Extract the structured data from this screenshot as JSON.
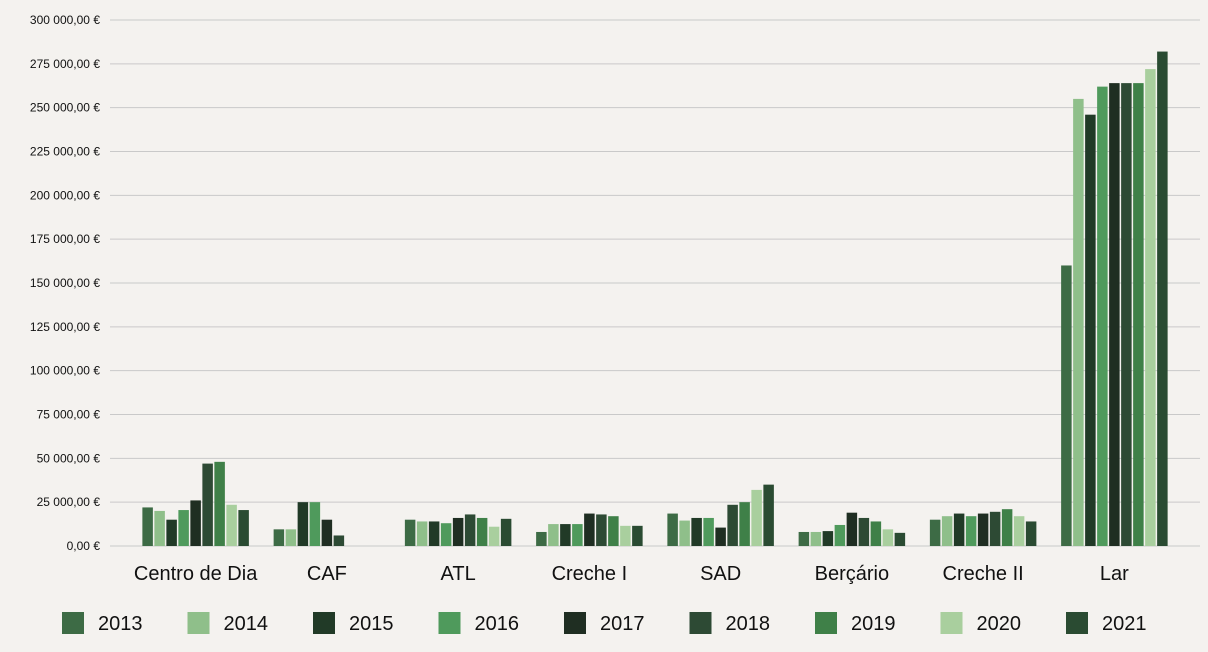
{
  "chart_data": {
    "type": "bar",
    "title": "",
    "xlabel": "",
    "ylabel": "",
    "ylim": [
      0,
      300000
    ],
    "yticks": [
      0,
      25000,
      50000,
      75000,
      100000,
      125000,
      150000,
      175000,
      200000,
      225000,
      250000,
      275000,
      300000
    ],
    "ytick_labels": [
      "0,00 €",
      "25 000,00 €",
      "50 000,00 €",
      "75 000,00 €",
      "100 000,00 €",
      "125 000,00 €",
      "150 000,00 €",
      "175 000,00 €",
      "200 000,00 €",
      "225 000,00 €",
      "250 000,00 €",
      "275 000,00 €",
      "300 000,00 €"
    ],
    "grid": true,
    "legend_position": "bottom",
    "categories": [
      "Centro de Dia",
      "CAF",
      "ATL",
      "Creche I",
      "SAD",
      "Berçário",
      "Creche II",
      "Lar"
    ],
    "series": [
      {
        "name": "2013",
        "color": "#3d6b45",
        "values": [
          22000,
          9500,
          15000,
          8000,
          18500,
          8000,
          15000,
          160000
        ]
      },
      {
        "name": "2014",
        "color": "#8fbf8a",
        "values": [
          20000,
          9500,
          14000,
          12500,
          14500,
          8000,
          17000,
          255000
        ]
      },
      {
        "name": "2015",
        "color": "#213a27",
        "values": [
          15000,
          25000,
          14000,
          12500,
          16000,
          8500,
          18500,
          246000
        ]
      },
      {
        "name": "2016",
        "color": "#4f9a5c",
        "values": [
          20500,
          25000,
          13000,
          12500,
          16000,
          12000,
          17000,
          262000
        ]
      },
      {
        "name": "2017",
        "color": "#1f2e22",
        "values": [
          26000,
          15000,
          16000,
          18500,
          10500,
          19000,
          18500,
          264000
        ]
      },
      {
        "name": "2018",
        "color": "#2d4a34",
        "values": [
          47000,
          6000,
          18000,
          18000,
          23500,
          16000,
          19500,
          264000
        ]
      },
      {
        "name": "2019",
        "color": "#3f8048",
        "values": [
          48000,
          0,
          16000,
          17000,
          25000,
          14000,
          21000,
          264000
        ]
      },
      {
        "name": "2020",
        "color": "#a9cf9e",
        "values": [
          23500,
          0,
          11000,
          11500,
          32000,
          9500,
          17000,
          272000
        ]
      },
      {
        "name": "2021",
        "color": "#2a4b32",
        "values": [
          20500,
          0,
          15500,
          11500,
          35000,
          7500,
          14000,
          282000
        ]
      }
    ]
  }
}
